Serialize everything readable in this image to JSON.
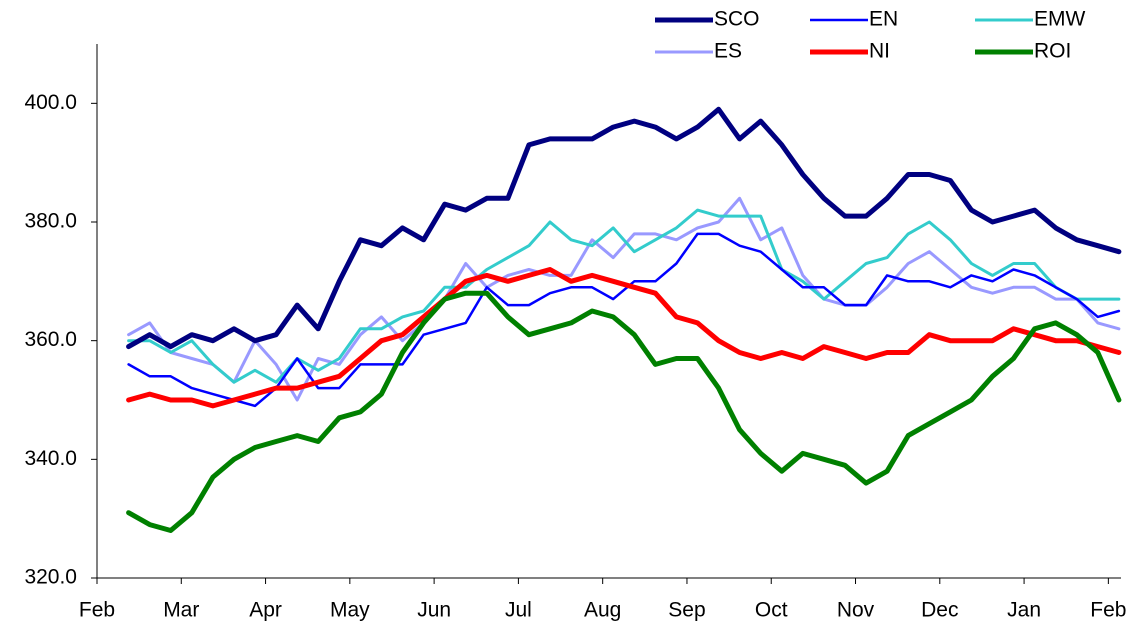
{
  "chart_data": {
    "type": "line",
    "x": [
      0.375,
      0.625,
      0.875,
      1.125,
      1.375,
      1.625,
      1.875,
      2.125,
      2.375,
      2.625,
      2.875,
      3.125,
      3.375,
      3.625,
      3.875,
      4.125,
      4.375,
      4.625,
      4.875,
      5.125,
      5.375,
      5.625,
      5.875,
      6.125,
      6.375,
      6.625,
      6.875,
      7.125,
      7.375,
      7.625,
      7.875,
      8.125,
      8.375,
      8.625,
      8.875,
      9.125,
      9.375,
      9.625,
      9.875,
      10.125,
      10.375,
      10.625,
      10.875,
      11.125,
      11.375,
      11.625,
      11.875,
      12.125
    ],
    "xlim": [
      0,
      12.15
    ],
    "xticks": [
      {
        "value": 0,
        "label": "Feb"
      },
      {
        "value": 1,
        "label": "Mar"
      },
      {
        "value": 2,
        "label": "Apr"
      },
      {
        "value": 3,
        "label": "May"
      },
      {
        "value": 4,
        "label": "Jun"
      },
      {
        "value": 5,
        "label": "Jul"
      },
      {
        "value": 6,
        "label": "Aug"
      },
      {
        "value": 7,
        "label": "Sep"
      },
      {
        "value": 8,
        "label": "Oct"
      },
      {
        "value": 9,
        "label": "Nov"
      },
      {
        "value": 10,
        "label": "Dec"
      },
      {
        "value": 11,
        "label": "Jan"
      },
      {
        "value": 12,
        "label": "Feb"
      }
    ],
    "ylim": [
      320,
      410
    ],
    "yticks": [
      {
        "value": 320,
        "label": "320.0"
      },
      {
        "value": 340,
        "label": "340.0"
      },
      {
        "value": 360,
        "label": "360.0"
      },
      {
        "value": 380,
        "label": "380.0"
      },
      {
        "value": 400,
        "label": "400.0"
      }
    ],
    "legend": "top-right",
    "series": [
      {
        "name": "SCO",
        "color": "#000080",
        "values": [
          359,
          361,
          359,
          361,
          360,
          362,
          360,
          361,
          366,
          362,
          370,
          377,
          376,
          379,
          377,
          383,
          382,
          384,
          384,
          393,
          394,
          394,
          394,
          396,
          397,
          396,
          394,
          396,
          399,
          394,
          397,
          393,
          388,
          384,
          381,
          381,
          384,
          388,
          388,
          387,
          382,
          380,
          381,
          382,
          379,
          377,
          376,
          375
        ]
      },
      {
        "name": "EN",
        "color": "#0000ff",
        "values": [
          356,
          354,
          354,
          352,
          351,
          350,
          349,
          352,
          357,
          352,
          352,
          356,
          356,
          356,
          361,
          362,
          363,
          369,
          366,
          366,
          368,
          369,
          369,
          367,
          370,
          370,
          373,
          378,
          378,
          376,
          375,
          372,
          369,
          369,
          366,
          366,
          371,
          370,
          370,
          369,
          371,
          370,
          372,
          371,
          369,
          367,
          364,
          365
        ]
      },
      {
        "name": "EMW",
        "color": "#33cccc",
        "values": [
          360,
          360,
          358,
          360,
          356,
          353,
          355,
          353,
          357,
          355,
          357,
          362,
          362,
          364,
          365,
          369,
          369,
          372,
          374,
          376,
          380,
          377,
          376,
          379,
          375,
          377,
          379,
          382,
          381,
          381,
          381,
          372,
          370,
          367,
          370,
          373,
          374,
          378,
          380,
          377,
          373,
          371,
          373,
          373,
          369,
          367,
          367,
          367
        ]
      },
      {
        "name": "ES",
        "color": "#9999ff",
        "values": [
          361,
          363,
          358,
          357,
          356,
          353,
          360,
          356,
          350,
          357,
          356,
          361,
          364,
          360,
          363,
          367,
          373,
          369,
          371,
          372,
          371,
          371,
          377,
          374,
          378,
          378,
          377,
          379,
          380,
          384,
          377,
          379,
          371,
          367,
          366,
          366,
          369,
          373,
          375,
          372,
          369,
          368,
          369,
          369,
          367,
          367,
          363,
          362
        ]
      },
      {
        "name": "NI",
        "color": "#ff0000",
        "values": [
          350,
          351,
          350,
          350,
          349,
          350,
          351,
          352,
          352,
          353,
          354,
          357,
          360,
          361,
          364,
          367,
          370,
          371,
          370,
          371,
          372,
          370,
          371,
          370,
          369,
          368,
          364,
          363,
          360,
          358,
          357,
          358,
          357,
          359,
          358,
          357,
          358,
          358,
          361,
          360,
          360,
          360,
          362,
          361,
          360,
          360,
          359,
          358
        ]
      },
      {
        "name": "ROI",
        "color": "#008000",
        "values": [
          331,
          329,
          328,
          331,
          337,
          340,
          342,
          343,
          344,
          343,
          347,
          348,
          351,
          358,
          363,
          367,
          368,
          368,
          364,
          361,
          362,
          363,
          365,
          364,
          361,
          356,
          357,
          357,
          352,
          345,
          341,
          338,
          341,
          340,
          339,
          336,
          338,
          344,
          346,
          348,
          350,
          354,
          357,
          362,
          363,
          361,
          358,
          350
        ]
      }
    ]
  }
}
